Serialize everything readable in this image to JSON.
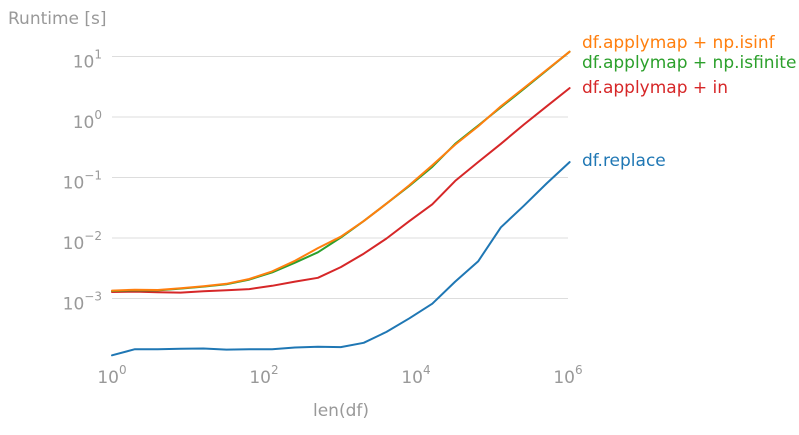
{
  "chart_data": {
    "type": "line",
    "title": "",
    "ylabel": "Runtime [s]",
    "xlabel": "len(df)",
    "xscale": "log",
    "yscale": "log",
    "xlim": [
      1,
      1000000
    ],
    "ylim": [
      6e-05,
      30
    ],
    "grid": "horizontal",
    "x_ticks": [
      {
        "base": "10",
        "exp": "0",
        "value": 1
      },
      {
        "base": "10",
        "exp": "2",
        "value": 100
      },
      {
        "base": "10",
        "exp": "4",
        "value": 10000
      },
      {
        "base": "10",
        "exp": "6",
        "value": 1000000
      }
    ],
    "y_ticks": [
      {
        "base": "10",
        "exp": "1",
        "value": 10
      },
      {
        "base": "10",
        "exp": "0",
        "value": 1
      },
      {
        "base": "10",
        "exp": "−1",
        "value": 0.1
      },
      {
        "base": "10",
        "exp": "−2",
        "value": 0.01
      },
      {
        "base": "10",
        "exp": "−3",
        "value": 0.001
      }
    ],
    "x": [
      1,
      2,
      4,
      8,
      16,
      32,
      64,
      128,
      256,
      512,
      1024,
      2048,
      4096,
      8192,
      16384,
      32768,
      65536,
      131072,
      262144,
      524288,
      1048576
    ],
    "series": [
      {
        "name": "df.applymap + np.isinf",
        "color": "#ff7f0e",
        "values": [
          0.00135,
          0.0014,
          0.00138,
          0.00148,
          0.0016,
          0.00175,
          0.0021,
          0.0028,
          0.0042,
          0.0068,
          0.0105,
          0.019,
          0.037,
          0.075,
          0.16,
          0.35,
          0.7,
          1.5,
          3.0,
          6.0,
          12.0
        ]
      },
      {
        "name": "df.applymap + np.isfinite",
        "color": "#2ca02c",
        "values": [
          0.00133,
          0.00137,
          0.00136,
          0.00146,
          0.00157,
          0.00172,
          0.00205,
          0.0027,
          0.0039,
          0.0058,
          0.0102,
          0.019,
          0.037,
          0.073,
          0.15,
          0.36,
          0.72,
          1.45,
          2.9,
          5.9,
          12.0
        ]
      },
      {
        "name": "df.applymap + in",
        "color": "#d62728",
        "values": [
          0.00128,
          0.0013,
          0.00127,
          0.00125,
          0.00132,
          0.00137,
          0.00143,
          0.00162,
          0.0019,
          0.0022,
          0.0033,
          0.0055,
          0.0098,
          0.019,
          0.036,
          0.088,
          0.18,
          0.36,
          0.75,
          1.5,
          3.0
        ]
      },
      {
        "name": "df.replace",
        "color": "#1f77b4",
        "values": [
          0.000115,
          0.000145,
          0.000145,
          0.000148,
          0.000149,
          0.000143,
          0.000145,
          0.000145,
          0.000155,
          0.00016,
          0.000157,
          0.000185,
          0.00028,
          0.00047,
          0.00082,
          0.0019,
          0.0041,
          0.015,
          0.034,
          0.08,
          0.18
        ]
      }
    ]
  }
}
